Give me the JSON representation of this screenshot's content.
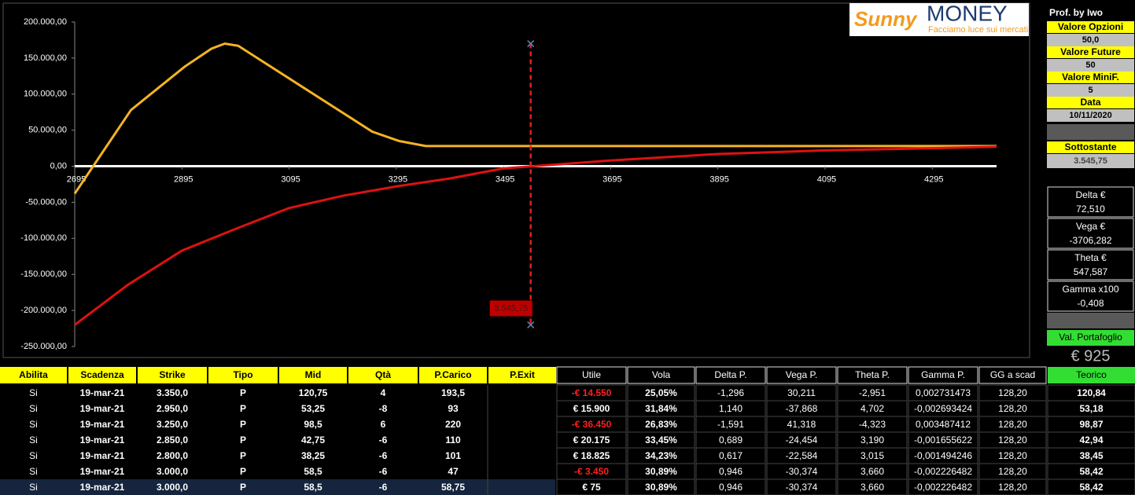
{
  "chart_data": {
    "type": "line",
    "xlim": [
      2695,
      4415
    ],
    "xticks": [
      2695,
      2895,
      3095,
      3295,
      3495,
      3695,
      3895,
      4095,
      4295
    ],
    "ylim": [
      -250000,
      200000
    ],
    "yticks": [
      {
        "value": 200000,
        "label": "200.000,00"
      },
      {
        "value": 150000,
        "label": "150.000,00"
      },
      {
        "value": 100000,
        "label": "100.000,00"
      },
      {
        "value": 50000,
        "label": "50.000,00"
      },
      {
        "value": 0,
        "label": "0,00"
      },
      {
        "value": -50000,
        "label": "-50.000,00"
      },
      {
        "value": -100000,
        "label": "-100.000,00"
      },
      {
        "value": -150000,
        "label": "-150.000,00"
      },
      {
        "value": -200000,
        "label": "-200.000,00"
      },
      {
        "value": -250000,
        "label": "-250.000,00"
      }
    ],
    "series": [
      {
        "color": "#f5b324",
        "x": [
          2695,
          2800,
          2850,
          2900,
          2950,
          2975,
          3000,
          3250,
          3300,
          3350,
          4415
        ],
        "values": [
          -38000,
          78000,
          108000,
          138000,
          163000,
          170000,
          167000,
          48000,
          35000,
          28000,
          28000
        ]
      },
      {
        "color": "#dd1111",
        "x": [
          2695,
          2795,
          2895,
          2995,
          3095,
          3195,
          3295,
          3395,
          3495,
          3695,
          3895,
          4095,
          4295,
          4415
        ],
        "values": [
          -220000,
          -164000,
          -117000,
          -87000,
          -58000,
          -41000,
          -28000,
          -17000,
          -3000,
          8000,
          17000,
          22000,
          25000,
          27000
        ]
      }
    ],
    "marker": {
      "x": 3545.75,
      "label": "3.545,75",
      "y_top": 170000,
      "y_bottom": -220000,
      "color": "#e02020"
    }
  },
  "logo": {
    "brand1": "Sunny",
    "brand2": "MONEY",
    "tagline": "Facciamo luce sui mercati"
  },
  "panel": {
    "author": "Prof. by Iwo",
    "fields": [
      {
        "label": "Valore Opzioni",
        "value": "50,0"
      },
      {
        "label": "Valore Future",
        "value": "50"
      },
      {
        "label": "Valore MiniF.",
        "value": "5"
      },
      {
        "label": "Data",
        "value": "10/11/2020"
      },
      {
        "label": "Sottostante",
        "value": "3.545,75"
      }
    ],
    "greeks": [
      {
        "label": "Delta €",
        "value": "72,510"
      },
      {
        "label": "Vega €",
        "value": "-3706,282"
      },
      {
        "label": "Theta €",
        "value": "547,587"
      },
      {
        "label": "Gamma x100",
        "value": "-0,408"
      }
    ],
    "portfolio": {
      "label": "Val. Portafoglio",
      "value": "€ 925"
    }
  },
  "table": {
    "headers": [
      "Abilita",
      "Scadenza",
      "Strike",
      "Tipo",
      "Mid",
      "Qtà",
      "P.Carico",
      "P.Exit",
      "Utile",
      "Vola",
      "Delta P.",
      "Vega P.",
      "Theta P.",
      "Gamma P.",
      "GG a scad",
      "Teorico"
    ],
    "rows": [
      [
        "Si",
        "19-mar-21",
        "3.350,0",
        "P",
        "120,75",
        "4",
        "193,5",
        "-€ 14.550",
        "25,05%",
        "-1,296",
        "30,211",
        "-2,951",
        "0,002731473",
        "128,20",
        "120,84"
      ],
      [
        "Si",
        "19-mar-21",
        "2.950,0",
        "P",
        "53,25",
        "-8",
        "93",
        "€ 15.900",
        "31,84%",
        "1,140",
        "-37,868",
        "4,702",
        "-0,002693424",
        "128,20",
        "53,18"
      ],
      [
        "Si",
        "19-mar-21",
        "3.250,0",
        "P",
        "98,5",
        "6",
        "220",
        "-€ 36.450",
        "26,83%",
        "-1,591",
        "41,318",
        "-4,323",
        "0,003487412",
        "128,20",
        "98,87"
      ],
      [
        "Si",
        "19-mar-21",
        "2.850,0",
        "P",
        "42,75",
        "-6",
        "110",
        "€ 20.175",
        "33,45%",
        "0,689",
        "-24,454",
        "3,190",
        "-0,001655622",
        "128,20",
        "42,94"
      ],
      [
        "Si",
        "19-mar-21",
        "2.800,0",
        "P",
        "38,25",
        "-6",
        "101",
        "€ 18.825",
        "34,23%",
        "0,617",
        "-22,584",
        "3,015",
        "-0,001494246",
        "128,20",
        "38,45"
      ],
      [
        "Si",
        "19-mar-21",
        "3.000,0",
        "P",
        "58,5",
        "-6",
        "47",
        "-€ 3.450",
        "30,89%",
        "0,946",
        "-30,374",
        "3,660",
        "-0,002226482",
        "128,20",
        "58,42"
      ],
      [
        "Si",
        "19-mar-21",
        "3.000,0",
        "P",
        "58,5",
        "-6",
        "58,75",
        "€ 75",
        "30,89%",
        "0,946",
        "-30,374",
        "3,660",
        "-0,002226482",
        "128,20",
        "58,42"
      ]
    ]
  }
}
